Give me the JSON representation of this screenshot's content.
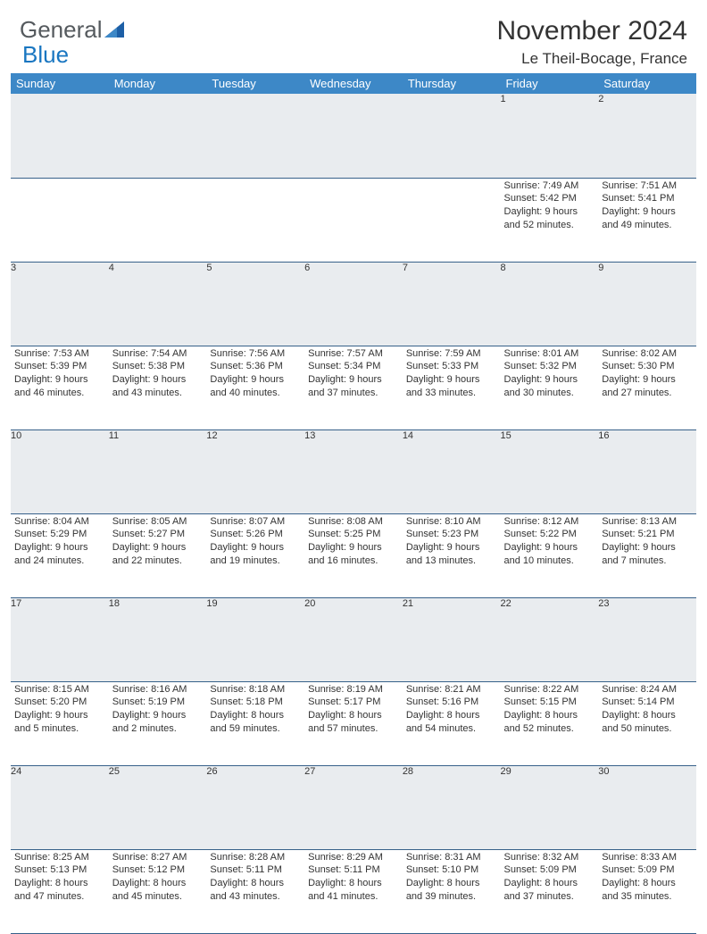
{
  "logo": {
    "text1": "General",
    "text2": "Blue"
  },
  "title": "November 2024",
  "location": "Le Theil-Bocage, France",
  "colors": {
    "header_bg": "#3d88c7",
    "header_text": "#ffffff",
    "daynum_bg": "#e9ecef",
    "cell_border": "#37618a",
    "logo_gray": "#555a5e",
    "logo_blue": "#1976c1"
  },
  "weekdays": [
    "Sunday",
    "Monday",
    "Tuesday",
    "Wednesday",
    "Thursday",
    "Friday",
    "Saturday"
  ],
  "weeks": [
    [
      null,
      null,
      null,
      null,
      null,
      {
        "n": "1",
        "sr": "Sunrise: 7:49 AM",
        "ss": "Sunset: 5:42 PM",
        "dl": "Daylight: 9 hours and 52 minutes."
      },
      {
        "n": "2",
        "sr": "Sunrise: 7:51 AM",
        "ss": "Sunset: 5:41 PM",
        "dl": "Daylight: 9 hours and 49 minutes."
      }
    ],
    [
      {
        "n": "3",
        "sr": "Sunrise: 7:53 AM",
        "ss": "Sunset: 5:39 PM",
        "dl": "Daylight: 9 hours and 46 minutes."
      },
      {
        "n": "4",
        "sr": "Sunrise: 7:54 AM",
        "ss": "Sunset: 5:38 PM",
        "dl": "Daylight: 9 hours and 43 minutes."
      },
      {
        "n": "5",
        "sr": "Sunrise: 7:56 AM",
        "ss": "Sunset: 5:36 PM",
        "dl": "Daylight: 9 hours and 40 minutes."
      },
      {
        "n": "6",
        "sr": "Sunrise: 7:57 AM",
        "ss": "Sunset: 5:34 PM",
        "dl": "Daylight: 9 hours and 37 minutes."
      },
      {
        "n": "7",
        "sr": "Sunrise: 7:59 AM",
        "ss": "Sunset: 5:33 PM",
        "dl": "Daylight: 9 hours and 33 minutes."
      },
      {
        "n": "8",
        "sr": "Sunrise: 8:01 AM",
        "ss": "Sunset: 5:32 PM",
        "dl": "Daylight: 9 hours and 30 minutes."
      },
      {
        "n": "9",
        "sr": "Sunrise: 8:02 AM",
        "ss": "Sunset: 5:30 PM",
        "dl": "Daylight: 9 hours and 27 minutes."
      }
    ],
    [
      {
        "n": "10",
        "sr": "Sunrise: 8:04 AM",
        "ss": "Sunset: 5:29 PM",
        "dl": "Daylight: 9 hours and 24 minutes."
      },
      {
        "n": "11",
        "sr": "Sunrise: 8:05 AM",
        "ss": "Sunset: 5:27 PM",
        "dl": "Daylight: 9 hours and 22 minutes."
      },
      {
        "n": "12",
        "sr": "Sunrise: 8:07 AM",
        "ss": "Sunset: 5:26 PM",
        "dl": "Daylight: 9 hours and 19 minutes."
      },
      {
        "n": "13",
        "sr": "Sunrise: 8:08 AM",
        "ss": "Sunset: 5:25 PM",
        "dl": "Daylight: 9 hours and 16 minutes."
      },
      {
        "n": "14",
        "sr": "Sunrise: 8:10 AM",
        "ss": "Sunset: 5:23 PM",
        "dl": "Daylight: 9 hours and 13 minutes."
      },
      {
        "n": "15",
        "sr": "Sunrise: 8:12 AM",
        "ss": "Sunset: 5:22 PM",
        "dl": "Daylight: 9 hours and 10 minutes."
      },
      {
        "n": "16",
        "sr": "Sunrise: 8:13 AM",
        "ss": "Sunset: 5:21 PM",
        "dl": "Daylight: 9 hours and 7 minutes."
      }
    ],
    [
      {
        "n": "17",
        "sr": "Sunrise: 8:15 AM",
        "ss": "Sunset: 5:20 PM",
        "dl": "Daylight: 9 hours and 5 minutes."
      },
      {
        "n": "18",
        "sr": "Sunrise: 8:16 AM",
        "ss": "Sunset: 5:19 PM",
        "dl": "Daylight: 9 hours and 2 minutes."
      },
      {
        "n": "19",
        "sr": "Sunrise: 8:18 AM",
        "ss": "Sunset: 5:18 PM",
        "dl": "Daylight: 8 hours and 59 minutes."
      },
      {
        "n": "20",
        "sr": "Sunrise: 8:19 AM",
        "ss": "Sunset: 5:17 PM",
        "dl": "Daylight: 8 hours and 57 minutes."
      },
      {
        "n": "21",
        "sr": "Sunrise: 8:21 AM",
        "ss": "Sunset: 5:16 PM",
        "dl": "Daylight: 8 hours and 54 minutes."
      },
      {
        "n": "22",
        "sr": "Sunrise: 8:22 AM",
        "ss": "Sunset: 5:15 PM",
        "dl": "Daylight: 8 hours and 52 minutes."
      },
      {
        "n": "23",
        "sr": "Sunrise: 8:24 AM",
        "ss": "Sunset: 5:14 PM",
        "dl": "Daylight: 8 hours and 50 minutes."
      }
    ],
    [
      {
        "n": "24",
        "sr": "Sunrise: 8:25 AM",
        "ss": "Sunset: 5:13 PM",
        "dl": "Daylight: 8 hours and 47 minutes."
      },
      {
        "n": "25",
        "sr": "Sunrise: 8:27 AM",
        "ss": "Sunset: 5:12 PM",
        "dl": "Daylight: 8 hours and 45 minutes."
      },
      {
        "n": "26",
        "sr": "Sunrise: 8:28 AM",
        "ss": "Sunset: 5:11 PM",
        "dl": "Daylight: 8 hours and 43 minutes."
      },
      {
        "n": "27",
        "sr": "Sunrise: 8:29 AM",
        "ss": "Sunset: 5:11 PM",
        "dl": "Daylight: 8 hours and 41 minutes."
      },
      {
        "n": "28",
        "sr": "Sunrise: 8:31 AM",
        "ss": "Sunset: 5:10 PM",
        "dl": "Daylight: 8 hours and 39 minutes."
      },
      {
        "n": "29",
        "sr": "Sunrise: 8:32 AM",
        "ss": "Sunset: 5:09 PM",
        "dl": "Daylight: 8 hours and 37 minutes."
      },
      {
        "n": "30",
        "sr": "Sunrise: 8:33 AM",
        "ss": "Sunset: 5:09 PM",
        "dl": "Daylight: 8 hours and 35 minutes."
      }
    ]
  ]
}
